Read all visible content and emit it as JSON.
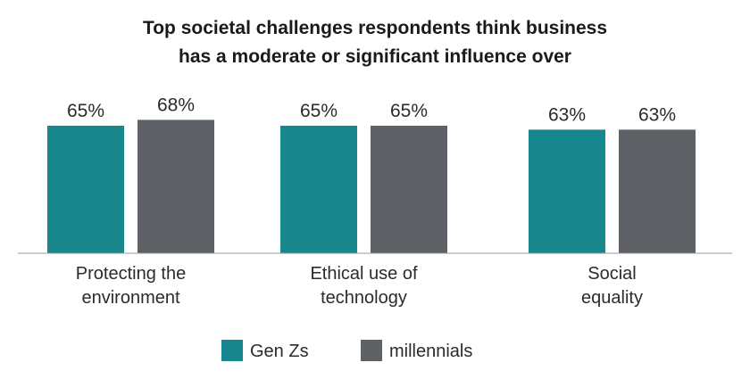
{
  "chart_data": {
    "type": "bar",
    "title": [
      "Top societal challenges respondents think business",
      "has a moderate or significant influence over"
    ],
    "categories": [
      [
        "Protecting the",
        "environment"
      ],
      [
        "Ethical use of",
        "technology"
      ],
      [
        "Social",
        "equality"
      ]
    ],
    "series": [
      {
        "name": "Gen Zs",
        "values": [
          65,
          65,
          63
        ],
        "labels": [
          "65%",
          "65%",
          "63%"
        ],
        "color": "#17878d"
      },
      {
        "name": "millennials",
        "values": [
          68,
          65,
          63
        ],
        "labels": [
          "68%",
          "65%",
          "63%"
        ],
        "color": "#5e6166"
      }
    ],
    "ylim": [
      0,
      100
    ],
    "grid": false,
    "legend": "bottom-center",
    "xlabel": "",
    "ylabel": ""
  }
}
